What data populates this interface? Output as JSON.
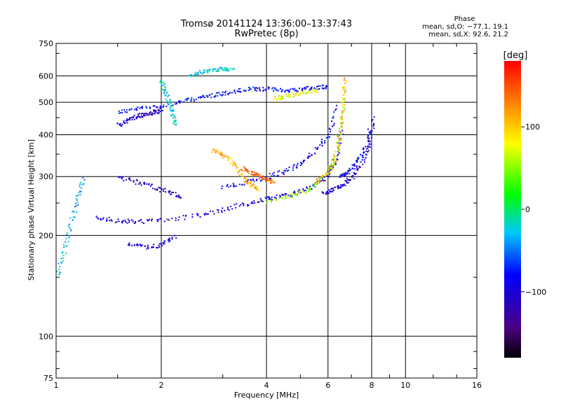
{
  "title_line1": "Tromsø 20141124 13:36:00–13:37:43",
  "title_line2": "RwPretec (8p)",
  "phase_info": {
    "heading": "Phase",
    "line_o": "mean, sd,O: −77.1, 19.1",
    "line_x": "mean, sd,X:  92.6, 21.2"
  },
  "colorbar": {
    "label": "[deg]",
    "range": [
      -180,
      180
    ],
    "ticks": [
      "100",
      "0",
      "−100"
    ],
    "tick_values": [
      100,
      0,
      -100
    ]
  },
  "chart_data": {
    "type": "scatter",
    "xlabel": "Frequency [MHz]",
    "ylabel": "Stationary phase Virtual Height [km]",
    "xscale": "log",
    "yscale": "log",
    "xlim": [
      1,
      16
    ],
    "ylim": [
      75,
      750
    ],
    "x_ticks": [
      "1",
      "2",
      "4",
      "6",
      "8",
      "10",
      "16"
    ],
    "x_tick_values": [
      1,
      2,
      4,
      6,
      8,
      10,
      16
    ],
    "y_ticks": [
      "750",
      "600",
      "500",
      "400",
      "300",
      "200",
      "100",
      "75"
    ],
    "y_tick_values": [
      750,
      600,
      500,
      400,
      300,
      200,
      100,
      75
    ],
    "grid_x": [
      2,
      4,
      6,
      8,
      10
    ],
    "grid_y": [
      600,
      500,
      400,
      300,
      200,
      100
    ],
    "color_by": "phase [deg]",
    "traces": [
      {
        "x": [
          1.5,
          1.7,
          2.0,
          2.3,
          2.6,
          2.9,
          3.2,
          3.6,
          4.0,
          4.5,
          5.0,
          5.5,
          6.0
        ],
        "y": [
          470,
          480,
          490,
          505,
          520,
          530,
          540,
          550,
          550,
          545,
          550,
          555,
          560
        ],
        "phase": -80
      },
      {
        "x": [
          1.5,
          1.6,
          1.7,
          1.8,
          1.9,
          2.0
        ],
        "y": [
          430,
          445,
          455,
          462,
          468,
          474
        ],
        "phase": -110
      },
      {
        "x": [
          2.0,
          2.05,
          2.1,
          2.15,
          2.2
        ],
        "y": [
          580,
          540,
          500,
          460,
          430
        ],
        "phase": -20
      },
      {
        "x": [
          2.4,
          2.6,
          2.8,
          3.0,
          3.2
        ],
        "y": [
          600,
          620,
          630,
          630,
          625
        ],
        "phase": -20
      },
      {
        "x": [
          4.2,
          4.5,
          4.8,
          5.2,
          5.6
        ],
        "y": [
          515,
          520,
          530,
          540,
          545
        ],
        "phase": 80
      },
      {
        "x": [
          1.3,
          1.5,
          1.7,
          2.0,
          2.5,
          3.0,
          3.5,
          4.0,
          4.5,
          5.0,
          5.5,
          6.0,
          6.3,
          6.6
        ],
        "y": [
          228,
          222,
          221,
          223,
          230,
          240,
          250,
          258,
          265,
          272,
          285,
          305,
          340,
          420
        ],
        "phase": -100
      },
      {
        "x": [
          3.0,
          3.5,
          4.0,
          4.5,
          5.0,
          5.5,
          6.0,
          6.4
        ],
        "y": [
          280,
          290,
          300,
          312,
          330,
          360,
          400,
          500
        ],
        "phase": -90
      },
      {
        "x": [
          4.0,
          4.6,
          5.2,
          5.8,
          6.2,
          6.5,
          6.7
        ],
        "y": [
          255,
          262,
          275,
          300,
          340,
          420,
          560
        ],
        "phase": 50
      },
      {
        "x": [
          5.5,
          6.0,
          6.3,
          6.5,
          6.6,
          6.7
        ],
        "y": [
          290,
          310,
          350,
          420,
          500,
          600
        ],
        "phase": 110
      },
      {
        "x": [
          5.8,
          6.2,
          6.6,
          7.0,
          7.5,
          7.9,
          8.1
        ],
        "y": [
          270,
          275,
          285,
          300,
          330,
          380,
          460
        ],
        "phase": -100
      },
      {
        "x": [
          6.5,
          6.8,
          7.2,
          7.6,
          7.9
        ],
        "y": [
          300,
          310,
          330,
          360,
          420
        ],
        "phase": -90
      },
      {
        "x": [
          2.8,
          3.0,
          3.2,
          3.4,
          3.6,
          3.8
        ],
        "y": [
          360,
          350,
          330,
          300,
          285,
          275
        ],
        "phase": 110
      },
      {
        "x": [
          3.4,
          3.6,
          3.8,
          4.0,
          4.2
        ],
        "y": [
          320,
          310,
          300,
          295,
          290
        ],
        "phase": 140
      },
      {
        "x": [
          1.5,
          1.7,
          1.9,
          2.1,
          2.3
        ],
        "y": [
          300,
          290,
          280,
          270,
          260
        ],
        "phase": -110
      },
      {
        "x": [
          1.6,
          1.8,
          2.0,
          2.2
        ],
        "y": [
          190,
          185,
          188,
          200
        ],
        "phase": -100
      },
      {
        "x": [
          1.0,
          1.05,
          1.1,
          1.15,
          1.2
        ],
        "y": [
          150,
          180,
          220,
          260,
          300
        ],
        "phase": -30
      }
    ]
  }
}
